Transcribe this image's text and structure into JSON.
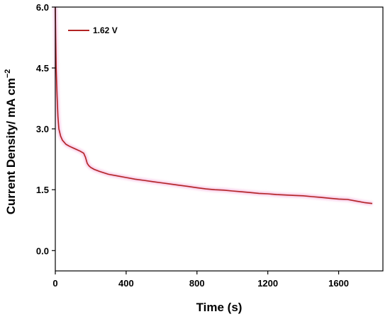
{
  "chart_data": {
    "type": "line",
    "title": "",
    "xlabel": "Time (s)",
    "ylabel": "Current Density/  mA cm",
    "ylabel_superscript": "−2",
    "xlim": [
      0,
      1850
    ],
    "ylim": [
      -0.5,
      6.0
    ],
    "x_ticks": [
      0,
      400,
      800,
      1200,
      1600
    ],
    "x_tick_labels": [
      "0",
      "400",
      "800",
      "1200",
      "1600"
    ],
    "y_ticks": [
      0.0,
      1.5,
      3.0,
      4.5,
      6.0
    ],
    "y_tick_labels": [
      "0.0",
      "1.5",
      "3.0",
      "4.5",
      "6.0"
    ],
    "grid": false,
    "legend_position": "top-left",
    "colors": {
      "series": "#b22222",
      "glow": "#f4a9d8"
    },
    "series": [
      {
        "name": "1.62 V",
        "x": [
          0,
          2,
          5,
          10,
          15,
          20,
          30,
          40,
          60,
          80,
          100,
          120,
          140,
          160,
          170,
          180,
          190,
          200,
          220,
          250,
          300,
          350,
          400,
          450,
          500,
          550,
          600,
          650,
          700,
          750,
          800,
          850,
          900,
          950,
          1000,
          1050,
          1100,
          1150,
          1200,
          1250,
          1300,
          1350,
          1400,
          1450,
          1500,
          1550,
          1600,
          1650,
          1700,
          1750,
          1790
        ],
        "y": [
          6.0,
          5.3,
          4.5,
          3.8,
          3.3,
          3.0,
          2.82,
          2.72,
          2.62,
          2.57,
          2.53,
          2.49,
          2.45,
          2.4,
          2.3,
          2.15,
          2.09,
          2.05,
          2.0,
          1.95,
          1.88,
          1.84,
          1.8,
          1.76,
          1.73,
          1.7,
          1.67,
          1.64,
          1.61,
          1.58,
          1.55,
          1.52,
          1.5,
          1.49,
          1.47,
          1.45,
          1.43,
          1.41,
          1.4,
          1.38,
          1.37,
          1.36,
          1.35,
          1.33,
          1.31,
          1.29,
          1.27,
          1.26,
          1.22,
          1.18,
          1.16
        ]
      }
    ]
  }
}
